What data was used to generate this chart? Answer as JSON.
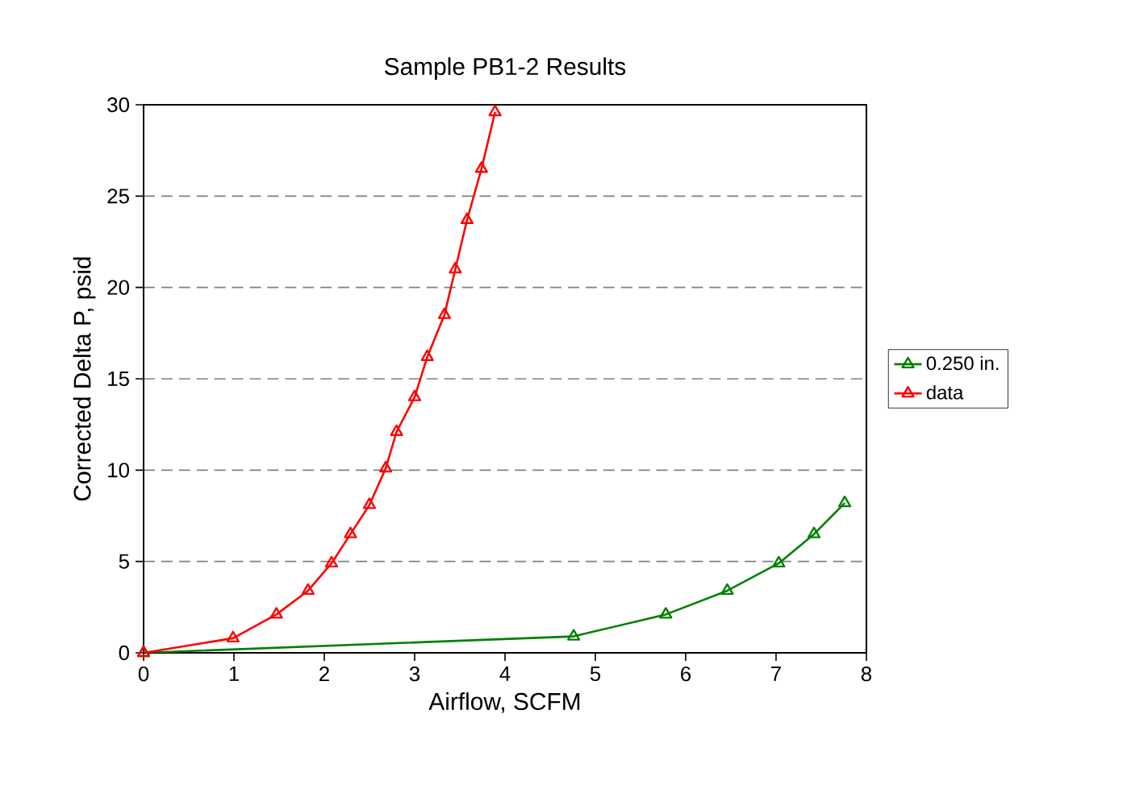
{
  "chart_data": {
    "type": "line",
    "title": "Sample PB1-2 Results",
    "xlabel": "Airflow, SCFM",
    "ylabel": "Corrected Delta P, psid",
    "xlim": [
      0,
      8
    ],
    "xticks": [
      0,
      1,
      2,
      3,
      4,
      5,
      6,
      7,
      8
    ],
    "ylim": [
      0,
      30
    ],
    "yticks": [
      0,
      5,
      10,
      15,
      20,
      25,
      30
    ],
    "grid": "y",
    "legend": "right",
    "marker": "triangle",
    "series": [
      {
        "name": "0.250 in.",
        "color": "#008000",
        "x": [
          0,
          4.76,
          5.78,
          6.46,
          7.03,
          7.42,
          7.76
        ],
        "values": [
          0,
          0.9,
          2.1,
          3.4,
          4.9,
          6.5,
          8.2
        ]
      },
      {
        "name": "data",
        "color": "#ff0000",
        "x": [
          0,
          0.99,
          1.47,
          1.82,
          2.08,
          2.29,
          2.5,
          2.68,
          2.8,
          3.0,
          3.14,
          3.33,
          3.45,
          3.58,
          3.74,
          3.89
        ],
        "values": [
          0,
          0.8,
          2.1,
          3.4,
          4.9,
          6.5,
          8.1,
          10.1,
          12.1,
          14.0,
          16.2,
          18.5,
          21.0,
          23.7,
          26.5,
          29.6
        ]
      }
    ]
  }
}
